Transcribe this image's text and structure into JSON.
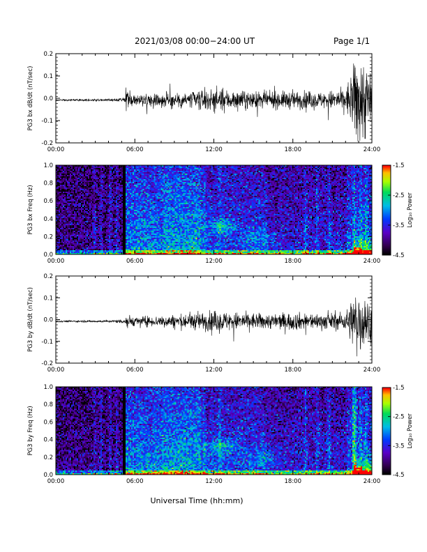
{
  "header": {
    "title": "2021/03/08  00:00−24:00 UT",
    "page": "Page 1/1"
  },
  "colorbar_title": "Log₁₀ Power",
  "colorbar_ticks": [
    "-1.5",
    "-2.5",
    "-3.5",
    "-4.5"
  ],
  "xlabel": "Universal Time (hh:mm)",
  "colors": {
    "background_panel": "#000020",
    "trace": "#000000"
  },
  "chart_data": [
    {
      "type": "line",
      "ylabel": "PG3 bx dB/dt (nT/sec)",
      "ylim": [
        -0.2,
        0.2
      ],
      "yticks": [
        "0.2",
        "0.1",
        "0.0",
        "-0.1",
        "-0.2"
      ],
      "xticks": [
        "00:00",
        "06:00",
        "12:00",
        "18:00",
        "24:00"
      ],
      "xlim": [
        "00:00",
        "24:00"
      ],
      "envelope": {
        "t_hours": [
          0,
          4,
          5.2,
          5.3,
          6,
          8,
          10,
          12,
          14,
          16,
          18,
          20,
          22,
          22.6,
          23,
          23.5,
          24
        ],
        "amplitude": [
          0.004,
          0.005,
          0.01,
          0.05,
          0.025,
          0.03,
          0.04,
          0.05,
          0.04,
          0.035,
          0.04,
          0.035,
          0.05,
          0.15,
          0.22,
          0.18,
          0.12
        ]
      }
    },
    {
      "type": "heatmap",
      "ylabel": "PG3 bx Freq (Hz)",
      "ylim": [
        0.0,
        1.0
      ],
      "yticks": [
        "1.0",
        "0.8",
        "0.6",
        "0.4",
        "0.2",
        "0.0"
      ],
      "xticks": [
        "00:00",
        "06:00",
        "12:00",
        "18:00",
        "24:00"
      ],
      "zlim": [
        -4.5,
        -1.5
      ]
    },
    {
      "type": "line",
      "ylabel": "PG3 by dB/dt (nT/sec)",
      "ylim": [
        -0.2,
        0.2
      ],
      "yticks": [
        "0.2",
        "0.1",
        "0.0",
        "-0.1",
        "-0.2"
      ],
      "xticks": [
        "00:00",
        "06:00",
        "12:00",
        "18:00",
        "24:00"
      ],
      "xlim": [
        "00:00",
        "24:00"
      ],
      "envelope": {
        "t_hours": [
          0,
          4,
          5.2,
          5.3,
          6,
          8,
          10,
          12,
          14,
          16,
          18,
          20,
          22,
          22.6,
          23,
          23.5,
          24
        ],
        "amplitude": [
          0.004,
          0.005,
          0.01,
          0.035,
          0.02,
          0.025,
          0.035,
          0.045,
          0.04,
          0.035,
          0.04,
          0.035,
          0.04,
          0.12,
          0.16,
          0.12,
          0.08
        ]
      }
    },
    {
      "type": "heatmap",
      "ylabel": "PG3 by Freq (Hz)",
      "ylim": [
        0.0,
        1.0
      ],
      "yticks": [
        "1.0",
        "0.8",
        "0.6",
        "0.4",
        "0.2",
        "0.0"
      ],
      "xticks": [
        "00:00",
        "06:00",
        "12:00",
        "18:00",
        "24:00"
      ],
      "zlim": [
        -4.5,
        -1.5
      ]
    }
  ]
}
